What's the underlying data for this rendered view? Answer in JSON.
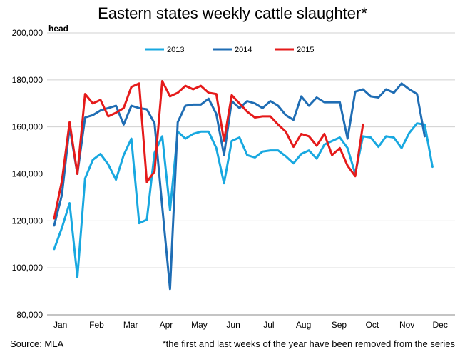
{
  "chart_data": {
    "type": "line",
    "title": "Eastern states weekly cattle slaughter*",
    "ylabel": "head",
    "xlabel": "",
    "ylim": [
      80000,
      200000
    ],
    "yticks": [
      80000,
      100000,
      120000,
      140000,
      160000,
      180000,
      200000
    ],
    "ytick_labels": [
      "80,000",
      "100,000",
      "120,000",
      "140,000",
      "160,000",
      "180,000",
      "200,000"
    ],
    "xlim": [
      1,
      52
    ],
    "month_labels": [
      {
        "label": "Jan",
        "week": 1.8
      },
      {
        "label": "Feb",
        "week": 6.5
      },
      {
        "label": "Mar",
        "week": 10.9
      },
      {
        "label": "Apr",
        "week": 15.5
      },
      {
        "label": "May",
        "week": 19.8
      },
      {
        "label": "Jun",
        "week": 24.2
      },
      {
        "label": "Jul",
        "week": 28.8
      },
      {
        "label": "Aug",
        "week": 33.3
      },
      {
        "label": "Sep",
        "week": 37.9
      },
      {
        "label": "Oct",
        "week": 42.2
      },
      {
        "label": "Nov",
        "week": 46.7
      },
      {
        "label": "Dec",
        "week": 51.0
      }
    ],
    "gridlines": true,
    "legend_position": "top",
    "series": [
      {
        "name": "2013",
        "color": "#18a8e0",
        "x": [
          1,
          2,
          3,
          4,
          5,
          6,
          7,
          8,
          9,
          10,
          11,
          12,
          13,
          14,
          15,
          16,
          17,
          18,
          19,
          20,
          21,
          22,
          23,
          24,
          25,
          26,
          27,
          28,
          29,
          30,
          31,
          32,
          33,
          34,
          35,
          36,
          37,
          38,
          39,
          40,
          41,
          42,
          43,
          44,
          45,
          46,
          47,
          48,
          49,
          50,
          51,
          52
        ],
        "values": [
          108000,
          117000,
          127500,
          96000,
          138000,
          146000,
          148500,
          144000,
          137500,
          148000,
          155000,
          119000,
          120500,
          149000,
          156000,
          124500,
          158000,
          155000,
          157000,
          158000,
          158000,
          151000,
          136000,
          154000,
          155500,
          148000,
          147000,
          149500,
          150000,
          150000,
          147500,
          144500,
          148500,
          150000,
          146500,
          152500,
          154000,
          155500,
          151000,
          140000,
          156000,
          155500,
          151500,
          156000,
          155500,
          151000,
          157500,
          161500,
          161000,
          143000,
          null,
          null
        ]
      },
      {
        "name": "2014",
        "color": "#1f6db4",
        "x": [
          1,
          2,
          3,
          4,
          5,
          6,
          7,
          8,
          9,
          10,
          11,
          12,
          13,
          14,
          15,
          16,
          17,
          18,
          19,
          20,
          21,
          22,
          23,
          24,
          25,
          26,
          27,
          28,
          29,
          30,
          31,
          32,
          33,
          34,
          35,
          36,
          37,
          38,
          39,
          40,
          41,
          42,
          43,
          44,
          45,
          46,
          47,
          48,
          49,
          50,
          51,
          52
        ],
        "values": [
          118000,
          131000,
          160000,
          140000,
          164000,
          165000,
          167000,
          168000,
          169000,
          161000,
          169000,
          168000,
          167500,
          161500,
          126000,
          91000,
          162000,
          169000,
          169500,
          169500,
          172000,
          165500,
          148000,
          171000,
          168000,
          171000,
          170000,
          168000,
          171000,
          169000,
          165000,
          163000,
          173000,
          169000,
          172500,
          170500,
          170500,
          170500,
          155000,
          175000,
          176000,
          173000,
          172500,
          176000,
          174500,
          178500,
          176000,
          174000,
          156000,
          null,
          null,
          null
        ]
      },
      {
        "name": "2015",
        "color": "#e51a1a",
        "x": [
          1,
          2,
          3,
          4,
          5,
          6,
          7,
          8,
          9,
          10,
          11,
          12,
          13,
          14,
          15,
          16,
          17,
          18,
          19,
          20,
          21,
          22,
          23,
          24,
          25,
          26,
          27,
          28,
          29,
          30,
          31,
          32,
          33,
          34,
          35,
          36,
          37,
          38,
          39,
          40,
          41,
          42,
          43,
          44,
          45,
          46,
          47,
          48,
          49,
          50,
          51,
          52
        ],
        "values": [
          121000,
          137000,
          162000,
          140000,
          174000,
          170000,
          171500,
          164500,
          166000,
          168000,
          177000,
          178500,
          136500,
          141000,
          179500,
          173000,
          174500,
          177500,
          176000,
          177500,
          174500,
          174000,
          154000,
          173500,
          170000,
          166500,
          164000,
          164500,
          164500,
          161000,
          158000,
          151500,
          157000,
          156000,
          152000,
          157000,
          148000,
          151000,
          143500,
          139000,
          161000,
          null,
          null,
          null,
          null,
          null,
          null,
          null,
          null,
          null,
          null,
          null
        ]
      }
    ]
  },
  "source": "Source: MLA",
  "footnote": "*the first and last weeks of the year have been removed from the series"
}
